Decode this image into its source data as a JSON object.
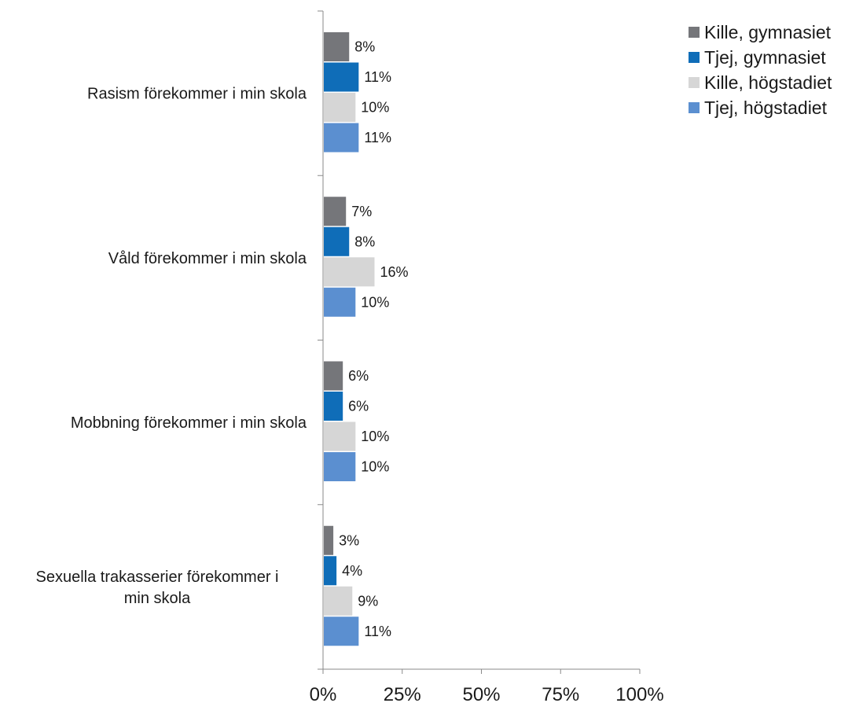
{
  "chart_data": {
    "type": "bar",
    "orientation": "horizontal",
    "categories": [
      "Rasism förekommer i min skola",
      "Våld förekommer i min skola",
      "Mobbning förekommer i min skola",
      "Sexuella trakasserier förekommer i min skola"
    ],
    "series": [
      {
        "name": "Kille, gymnasiet",
        "color": "#75767a",
        "values": [
          8,
          7,
          6,
          3
        ],
        "labels": [
          "8%",
          "7%",
          "6%",
          "3%"
        ]
      },
      {
        "name": "Tjej, gymnasiet",
        "color": "#0f6db8",
        "values": [
          11,
          8,
          6,
          4
        ],
        "labels": [
          "11%",
          "8%",
          "6%",
          "4%"
        ]
      },
      {
        "name": "Kille, högstadiet",
        "color": "#d6d6d6",
        "values": [
          10,
          16,
          10,
          9
        ],
        "labels": [
          "10%",
          "16%",
          "10%",
          "9%"
        ]
      },
      {
        "name": "Tjej, högstadiet",
        "color": "#5b8fd0",
        "values": [
          11,
          10,
          10,
          11
        ],
        "labels": [
          "11%",
          "10%",
          "10%",
          "11%"
        ]
      }
    ],
    "xlim": [
      0,
      100
    ],
    "xticks": [
      0,
      25,
      50,
      75,
      100
    ],
    "xtick_labels": [
      "0%",
      "25%",
      "50%",
      "75%",
      "100%"
    ],
    "legend_position": "top-right",
    "grid": false
  }
}
